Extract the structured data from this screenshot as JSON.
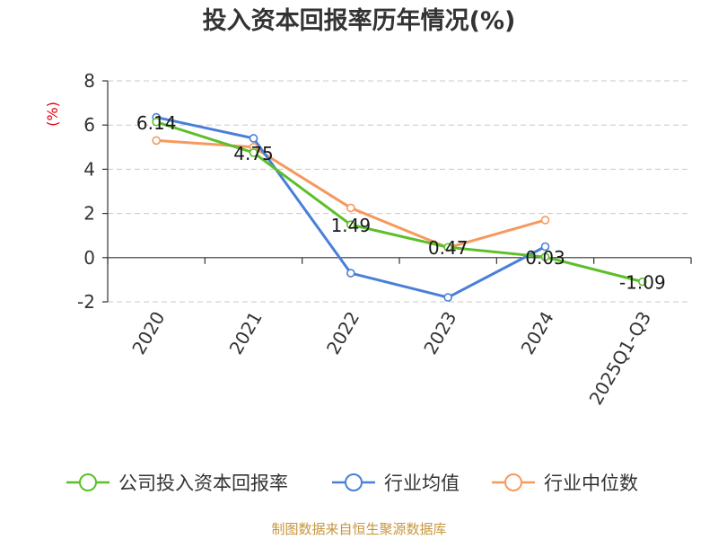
{
  "chart_data": {
    "type": "line",
    "title": "投入资本回报率历年情况(%)",
    "ylabel": "(%)",
    "xlabel": "",
    "categories": [
      "2020",
      "2021",
      "2022",
      "2023",
      "2024",
      "2025Q1-Q3"
    ],
    "ylim": [
      -2,
      8
    ],
    "yticks": [
      -2,
      0,
      2,
      4,
      6,
      8
    ],
    "grid": true,
    "legend_position": "bottom",
    "series": [
      {
        "name": "公司投入资本回报率",
        "color": "#5cbf2a",
        "values": [
          6.14,
          4.75,
          1.49,
          0.47,
          0.03,
          -1.09
        ],
        "labels": [
          "6.14",
          "4.75",
          "1.49",
          "0.47",
          "0.03",
          "-1.09"
        ]
      },
      {
        "name": "行业均值",
        "color": "#4a7fd8",
        "values": [
          6.35,
          5.4,
          -0.7,
          -1.8,
          0.5,
          null
        ]
      },
      {
        "name": "行业中位数",
        "color": "#f59a5e",
        "values": [
          5.3,
          5.0,
          2.25,
          0.45,
          1.7,
          null
        ]
      }
    ],
    "source": "制图数据来自恒生聚源数据库"
  }
}
